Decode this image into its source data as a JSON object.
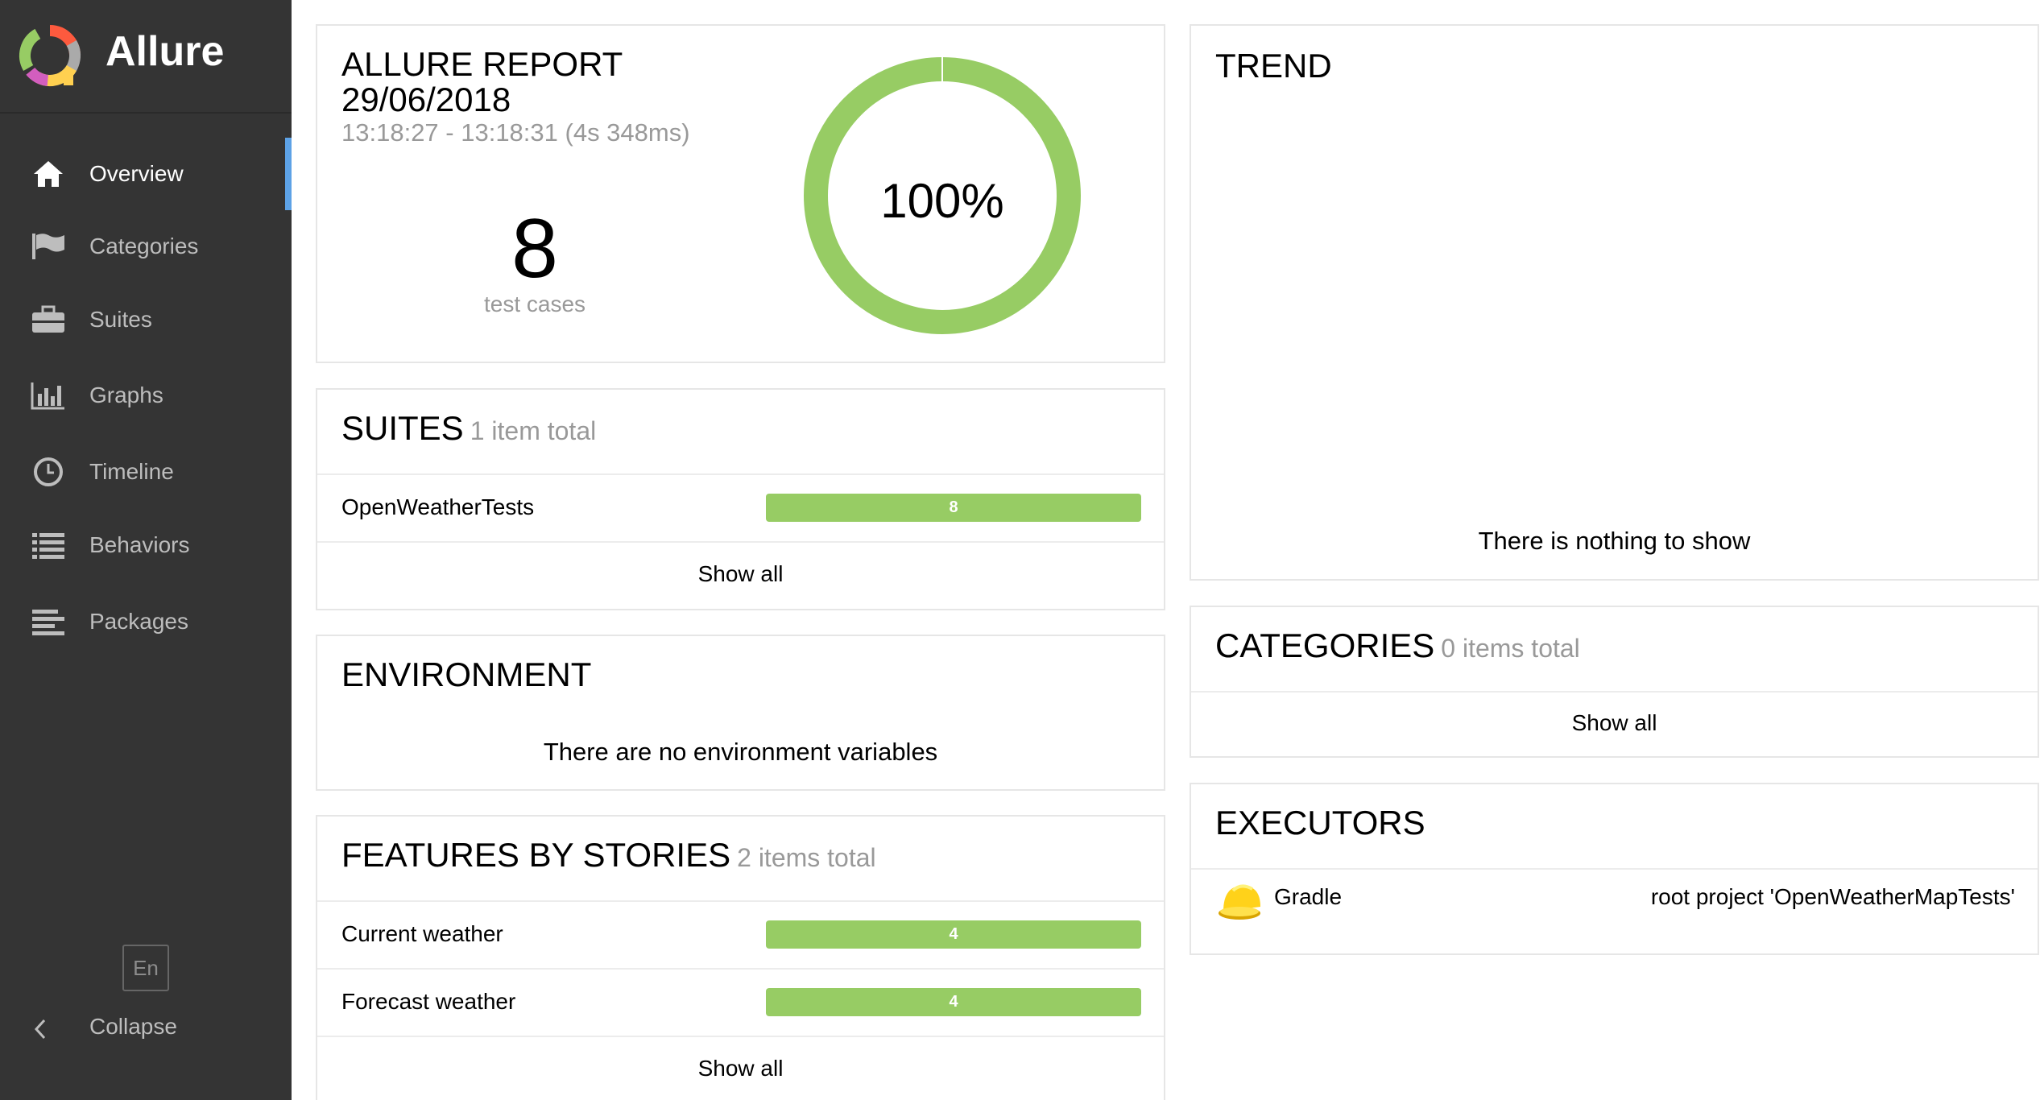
{
  "app": {
    "name": "Allure"
  },
  "sidebar": {
    "items": [
      {
        "label": "Overview",
        "icon": "home-icon",
        "active": true
      },
      {
        "label": "Categories",
        "icon": "flag-icon",
        "active": false
      },
      {
        "label": "Suites",
        "icon": "briefcase-icon",
        "active": false
      },
      {
        "label": "Graphs",
        "icon": "bar-chart-icon",
        "active": false
      },
      {
        "label": "Timeline",
        "icon": "clock-icon",
        "active": false
      },
      {
        "label": "Behaviors",
        "icon": "list-icon",
        "active": false
      },
      {
        "label": "Packages",
        "icon": "align-left-icon",
        "active": false
      }
    ],
    "language": "En",
    "collapse_label": "Collapse"
  },
  "summary": {
    "title": "ALLURE REPORT",
    "date": "29/06/2018",
    "time_range": "13:18:27 - 13:18:31 (4s 348ms)",
    "test_count": "8",
    "test_count_label": "test cases",
    "percent": "100%",
    "pass_fraction": 1.0,
    "donut_color": "#97cc64"
  },
  "suites": {
    "title": "SUITES",
    "subtitle": "1 item total",
    "rows": [
      {
        "name": "OpenWeatherTests",
        "count": "8"
      }
    ],
    "show_all": "Show all"
  },
  "environment": {
    "title": "ENVIRONMENT",
    "empty_text": "There are no environment variables"
  },
  "features": {
    "title": "FEATURES BY STORIES",
    "subtitle": "2 items total",
    "rows": [
      {
        "name": "Current weather",
        "count": "4"
      },
      {
        "name": "Forecast weather",
        "count": "4"
      }
    ],
    "show_all": "Show all"
  },
  "trend": {
    "title": "TREND",
    "empty_text": "There is nothing to show"
  },
  "categories": {
    "title": "CATEGORIES",
    "subtitle": "0 items total",
    "show_all": "Show all"
  },
  "executors": {
    "title": "EXECUTORS",
    "rows": [
      {
        "name": "Gradle",
        "build": "root project 'OpenWeatherMapTests'",
        "icon": "hard-hat-icon"
      }
    ]
  },
  "colors": {
    "passed": "#97cc64",
    "sidebar": "#343434",
    "accent": "#5da2e6"
  }
}
